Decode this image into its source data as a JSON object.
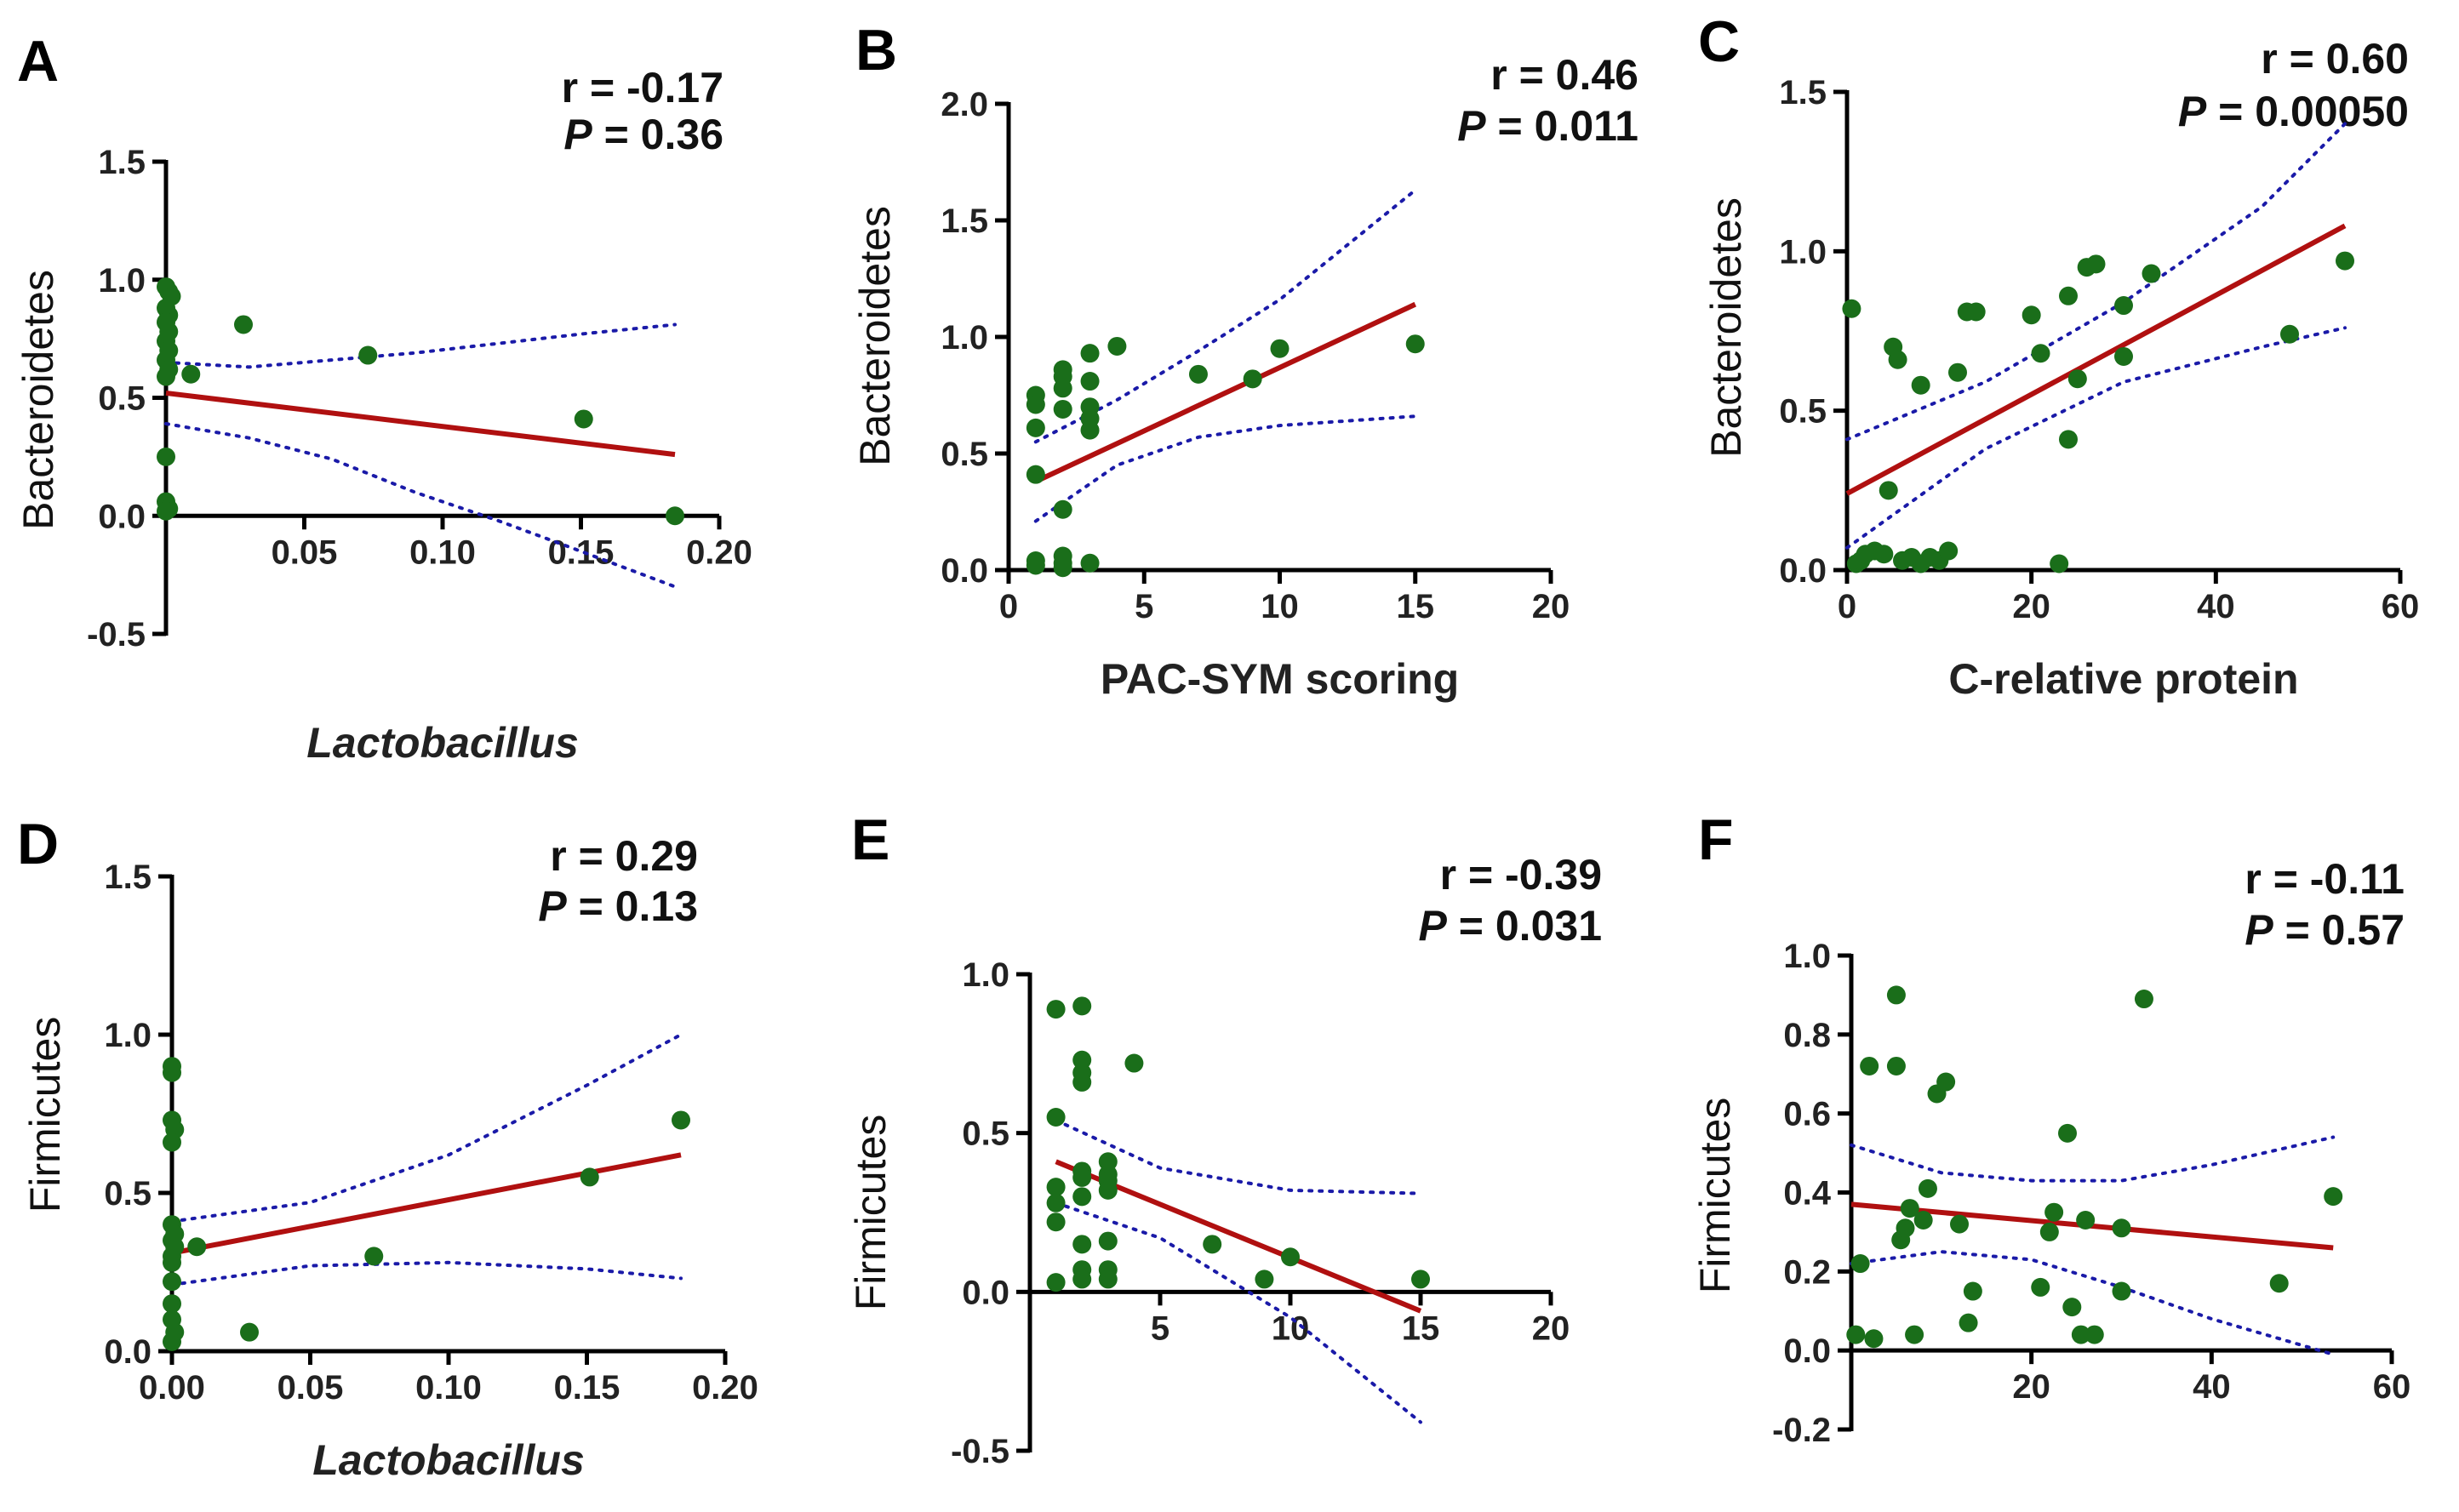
{
  "chart_data": [
    {
      "id": "A",
      "type": "scatter",
      "letter": "A",
      "xlabel": "Lactobacillus",
      "xlabel_italic": true,
      "ylabel": "Bacteroidetes",
      "xlim": [
        0,
        0.2
      ],
      "ylim": [
        -0.5,
        1.5
      ],
      "xticks": [
        0.05,
        0.1,
        0.15,
        0.2
      ],
      "xtick_labels": [
        "0.05",
        "0.10",
        "0.15",
        "0.20"
      ],
      "yticks": [
        -0.5,
        0.0,
        0.5,
        1.0,
        1.5
      ],
      "ytick_labels": [
        "-0.5",
        "0.0",
        "0.5",
        "1.0",
        "1.5"
      ],
      "r_text": "r = -0.17",
      "p_label": "P",
      "p_value": " = 0.36",
      "points": [
        [
          0,
          0.97
        ],
        [
          0.001,
          0.95
        ],
        [
          0.002,
          0.93
        ],
        [
          0,
          0.88
        ],
        [
          0.001,
          0.85
        ],
        [
          0,
          0.82
        ],
        [
          0.001,
          0.78
        ],
        [
          0,
          0.74
        ],
        [
          0.001,
          0.7
        ],
        [
          0,
          0.66
        ],
        [
          0.001,
          0.62
        ],
        [
          0,
          0.59
        ],
        [
          0,
          0.25
        ],
        [
          0,
          0.06
        ],
        [
          0.001,
          0.03
        ],
        [
          0,
          0.02
        ],
        [
          0.009,
          0.6
        ],
        [
          0.028,
          0.81
        ],
        [
          0.073,
          0.68
        ],
        [
          0.151,
          0.41
        ],
        [
          0.184,
          0.0
        ]
      ],
      "fit": [
        [
          0,
          0.52
        ],
        [
          0.184,
          0.26
        ]
      ],
      "ci_upper": [
        [
          0,
          0.65
        ],
        [
          0.03,
          0.63
        ],
        [
          0.06,
          0.66
        ],
        [
          0.09,
          0.69
        ],
        [
          0.12,
          0.73
        ],
        [
          0.15,
          0.77
        ],
        [
          0.184,
          0.81
        ]
      ],
      "ci_lower": [
        [
          0,
          0.39
        ],
        [
          0.03,
          0.33
        ],
        [
          0.06,
          0.24
        ],
        [
          0.09,
          0.1
        ],
        [
          0.12,
          -0.02
        ],
        [
          0.15,
          -0.15
        ],
        [
          0.184,
          -0.3
        ]
      ]
    },
    {
      "id": "B",
      "type": "scatter",
      "letter": "B",
      "xlabel": "PAC-SYM scoring",
      "xlabel_italic": false,
      "ylabel": "Bacteroidetes",
      "xlim": [
        0,
        20
      ],
      "ylim": [
        0,
        2.0
      ],
      "xticks": [
        0,
        5,
        10,
        15,
        20
      ],
      "xtick_labels": [
        "0",
        "5",
        "10",
        "15",
        "20"
      ],
      "yticks": [
        0.0,
        0.5,
        1.0,
        1.5,
        2.0
      ],
      "ytick_labels": [
        "0.0",
        "0.5",
        "1.0",
        "1.5",
        "2.0"
      ],
      "r_text": "r = 0.46",
      "p_label": "P",
      "p_value": " = 0.011",
      "points": [
        [
          1,
          0.75
        ],
        [
          1,
          0.71
        ],
        [
          1,
          0.61
        ],
        [
          1,
          0.41
        ],
        [
          1,
          0.04
        ],
        [
          1,
          0.02
        ],
        [
          2,
          0.86
        ],
        [
          2,
          0.83
        ],
        [
          2,
          0.78
        ],
        [
          2,
          0.69
        ],
        [
          2,
          0.26
        ],
        [
          2,
          0.06
        ],
        [
          2,
          0.03
        ],
        [
          2,
          0.01
        ],
        [
          3,
          0.93
        ],
        [
          3,
          0.81
        ],
        [
          3,
          0.7
        ],
        [
          3,
          0.65
        ],
        [
          3,
          0.6
        ],
        [
          3,
          0.03
        ],
        [
          4,
          0.96
        ],
        [
          7,
          0.84
        ],
        [
          9,
          0.82
        ],
        [
          10,
          0.95
        ],
        [
          15,
          0.97
        ]
      ],
      "fit": [
        [
          1,
          0.38
        ],
        [
          15,
          1.14
        ]
      ],
      "ci_upper": [
        [
          1,
          0.55
        ],
        [
          4,
          0.73
        ],
        [
          7,
          0.94
        ],
        [
          10,
          1.16
        ],
        [
          15,
          1.63
        ]
      ],
      "ci_lower": [
        [
          1,
          0.21
        ],
        [
          4,
          0.45
        ],
        [
          7,
          0.57
        ],
        [
          10,
          0.62
        ],
        [
          15,
          0.66
        ]
      ]
    },
    {
      "id": "C",
      "type": "scatter",
      "letter": "C",
      "xlabel": "C-relative protein",
      "xlabel_italic": false,
      "ylabel": "Bacteroidetes",
      "xlim": [
        0,
        60
      ],
      "ylim": [
        0,
        1.5
      ],
      "xticks": [
        0,
        20,
        40,
        60
      ],
      "xtick_labels": [
        "0",
        "20",
        "40",
        "60"
      ],
      "yticks": [
        0.0,
        0.5,
        1.0,
        1.5
      ],
      "ytick_labels": [
        "0.0",
        "0.5",
        "1.0",
        "1.5"
      ],
      "r_text": "r = 0.60",
      "p_label": "P",
      "p_value": " = 0.00050",
      "points": [
        [
          0.5,
          0.82
        ],
        [
          1,
          0.02
        ],
        [
          1.5,
          0.03
        ],
        [
          2,
          0.05
        ],
        [
          3,
          0.06
        ],
        [
          4,
          0.05
        ],
        [
          4.5,
          0.25
        ],
        [
          5,
          0.7
        ],
        [
          5.5,
          0.66
        ],
        [
          6,
          0.03
        ],
        [
          7,
          0.04
        ],
        [
          8,
          0.02
        ],
        [
          8,
          0.58
        ],
        [
          9,
          0.04
        ],
        [
          10,
          0.03
        ],
        [
          11,
          0.06
        ],
        [
          12,
          0.62
        ],
        [
          13,
          0.81
        ],
        [
          14,
          0.81
        ],
        [
          20,
          0.8
        ],
        [
          21,
          0.68
        ],
        [
          23,
          0.02
        ],
        [
          24,
          0.41
        ],
        [
          24,
          0.86
        ],
        [
          25,
          0.6
        ],
        [
          26,
          0.95
        ],
        [
          27,
          0.96
        ],
        [
          30,
          0.83
        ],
        [
          30,
          0.67
        ],
        [
          33,
          0.93
        ],
        [
          48,
          0.74
        ],
        [
          54,
          0.97
        ]
      ],
      "fit": [
        [
          0,
          0.24
        ],
        [
          54,
          1.08
        ]
      ],
      "ci_upper": [
        [
          0,
          0.41
        ],
        [
          15,
          0.59
        ],
        [
          30,
          0.84
        ],
        [
          45,
          1.14
        ],
        [
          54,
          1.4
        ]
      ],
      "ci_lower": [
        [
          0,
          0.07
        ],
        [
          15,
          0.38
        ],
        [
          30,
          0.59
        ],
        [
          45,
          0.7
        ],
        [
          54,
          0.76
        ]
      ]
    },
    {
      "id": "D",
      "type": "scatter",
      "letter": "D",
      "xlabel": "Lactobacillus",
      "xlabel_italic": true,
      "ylabel": "Firmicutes",
      "xlim": [
        0,
        0.2
      ],
      "ylim": [
        0,
        1.5
      ],
      "xticks": [
        0.0,
        0.05,
        0.1,
        0.15,
        0.2
      ],
      "xtick_labels": [
        "0.00",
        "0.05",
        "0.10",
        "0.15",
        "0.20"
      ],
      "yticks": [
        0.0,
        0.5,
        1.0,
        1.5
      ],
      "ytick_labels": [
        "0.0",
        "0.5",
        "1.0",
        "1.5"
      ],
      "r_text": "r = 0.29",
      "p_label": "P",
      "p_value": " = 0.13",
      "points": [
        [
          0,
          0.9
        ],
        [
          0,
          0.88
        ],
        [
          0,
          0.73
        ],
        [
          0.001,
          0.7
        ],
        [
          0,
          0.66
        ],
        [
          0,
          0.4
        ],
        [
          0.001,
          0.37
        ],
        [
          0,
          0.35
        ],
        [
          0.001,
          0.33
        ],
        [
          0,
          0.3
        ],
        [
          0,
          0.28
        ],
        [
          0,
          0.22
        ],
        [
          0,
          0.15
        ],
        [
          0,
          0.1
        ],
        [
          0.001,
          0.06
        ],
        [
          0,
          0.03
        ],
        [
          0.009,
          0.33
        ],
        [
          0.028,
          0.06
        ],
        [
          0.073,
          0.3
        ],
        [
          0.151,
          0.55
        ],
        [
          0.184,
          0.73
        ]
      ],
      "fit": [
        [
          0,
          0.31
        ],
        [
          0.184,
          0.62
        ]
      ],
      "ci_upper": [
        [
          0,
          0.41
        ],
        [
          0.05,
          0.47
        ],
        [
          0.1,
          0.62
        ],
        [
          0.15,
          0.84
        ],
        [
          0.184,
          1.0
        ]
      ],
      "ci_lower": [
        [
          0,
          0.21
        ],
        [
          0.05,
          0.27
        ],
        [
          0.1,
          0.28
        ],
        [
          0.15,
          0.26
        ],
        [
          0.184,
          0.23
        ]
      ]
    },
    {
      "id": "E",
      "type": "scatter",
      "letter": "E",
      "xlabel": "PAC-SYM scoring",
      "xlabel_italic": false,
      "ylabel": "Firmicutes",
      "xlim": [
        0,
        20
      ],
      "ylim": [
        -0.5,
        1.0
      ],
      "xticks": [
        5,
        10,
        15,
        20
      ],
      "xtick_labels": [
        "5",
        "10",
        "15",
        "20"
      ],
      "yticks": [
        -0.5,
        0.0,
        0.5,
        1.0
      ],
      "ytick_labels": [
        "-0.5",
        "0.0",
        "0.5",
        "1.0"
      ],
      "r_text": "r = -0.39",
      "p_label": "P",
      "p_value": " = 0.031",
      "points": [
        [
          1,
          0.89
        ],
        [
          1,
          0.55
        ],
        [
          1,
          0.33
        ],
        [
          1,
          0.28
        ],
        [
          1,
          0.22
        ],
        [
          1,
          0.03
        ],
        [
          2,
          0.9
        ],
        [
          2,
          0.73
        ],
        [
          2,
          0.69
        ],
        [
          2,
          0.66
        ],
        [
          2,
          0.38
        ],
        [
          2,
          0.36
        ],
        [
          2,
          0.3
        ],
        [
          2,
          0.15
        ],
        [
          2,
          0.07
        ],
        [
          2,
          0.04
        ],
        [
          3,
          0.41
        ],
        [
          3,
          0.37
        ],
        [
          3,
          0.35
        ],
        [
          3,
          0.32
        ],
        [
          3,
          0.16
        ],
        [
          3,
          0.07
        ],
        [
          3,
          0.04
        ],
        [
          4,
          0.72
        ],
        [
          7,
          0.15
        ],
        [
          9,
          0.04
        ],
        [
          10,
          0.11
        ],
        [
          15,
          0.04
        ]
      ],
      "fit": [
        [
          1,
          0.41
        ],
        [
          15,
          -0.06
        ]
      ],
      "ci_upper": [
        [
          1,
          0.54
        ],
        [
          5,
          0.39
        ],
        [
          10,
          0.32
        ],
        [
          15,
          0.31
        ]
      ],
      "ci_lower": [
        [
          1,
          0.28
        ],
        [
          5,
          0.17
        ],
        [
          10,
          -0.08
        ],
        [
          15,
          -0.41
        ]
      ]
    },
    {
      "id": "F",
      "type": "scatter",
      "letter": "F",
      "xlabel": "C-relative protein",
      "xlabel_italic": false,
      "ylabel": "Firmicutes",
      "xlim": [
        0,
        60
      ],
      "ylim": [
        -0.2,
        1.0
      ],
      "xticks": [
        20,
        40,
        60
      ],
      "xtick_labels": [
        "20",
        "40",
        "60"
      ],
      "yticks": [
        -0.2,
        0.0,
        0.2,
        0.4,
        0.6,
        0.8,
        1.0
      ],
      "ytick_labels": [
        "-0.2",
        "0.0",
        "0.2",
        "0.4",
        "0.6",
        "0.8",
        "1.0"
      ],
      "r_text": "r = -0.11",
      "p_label": "P",
      "p_value": " = 0.57",
      "points": [
        [
          0.5,
          0.04
        ],
        [
          1,
          0.22
        ],
        [
          2,
          0.72
        ],
        [
          2.5,
          0.03
        ],
        [
          5,
          0.9
        ],
        [
          5,
          0.72
        ],
        [
          5.5,
          0.28
        ],
        [
          6,
          0.31
        ],
        [
          6.5,
          0.36
        ],
        [
          7,
          0.04
        ],
        [
          8,
          0.33
        ],
        [
          8.5,
          0.41
        ],
        [
          9.5,
          0.65
        ],
        [
          10.5,
          0.68
        ],
        [
          12,
          0.32
        ],
        [
          13,
          0.07
        ],
        [
          13.5,
          0.15
        ],
        [
          21,
          0.16
        ],
        [
          22,
          0.3
        ],
        [
          22.5,
          0.35
        ],
        [
          24,
          0.55
        ],
        [
          24.5,
          0.11
        ],
        [
          25.5,
          0.04
        ],
        [
          26,
          0.33
        ],
        [
          27,
          0.04
        ],
        [
          30,
          0.15
        ],
        [
          30,
          0.31
        ],
        [
          32.5,
          0.89
        ],
        [
          47.5,
          0.17
        ],
        [
          53.5,
          0.39
        ]
      ],
      "fit": [
        [
          0,
          0.37
        ],
        [
          53.5,
          0.26
        ]
      ],
      "ci_upper": [
        [
          0,
          0.52
        ],
        [
          10,
          0.45
        ],
        [
          20,
          0.43
        ],
        [
          30,
          0.43
        ],
        [
          40,
          0.47
        ],
        [
          53.5,
          0.54
        ]
      ],
      "ci_lower": [
        [
          0,
          0.22
        ],
        [
          10,
          0.25
        ],
        [
          20,
          0.23
        ],
        [
          30,
          0.16
        ],
        [
          40,
          0.08
        ],
        [
          53.5,
          -0.01
        ]
      ]
    }
  ]
}
